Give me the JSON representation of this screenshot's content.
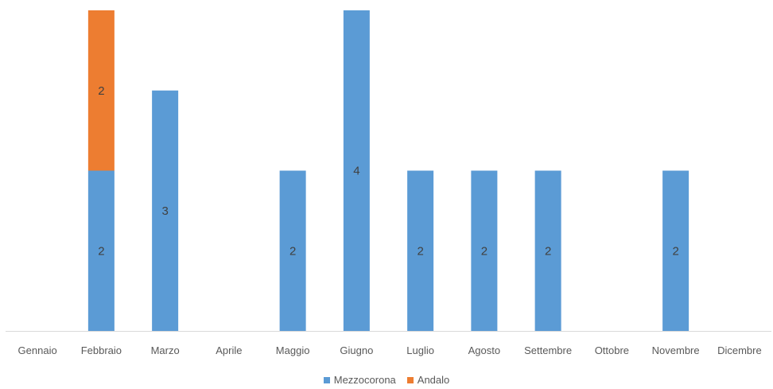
{
  "chart_data": {
    "type": "bar",
    "stacked": true,
    "categories": [
      "Gennaio",
      "Febbraio",
      "Marzo",
      "Aprile",
      "Maggio",
      "Giugno",
      "Luglio",
      "Agosto",
      "Settembre",
      "Ottobre",
      "Novembre",
      "Dicembre"
    ],
    "series": [
      {
        "name": "Mezzocorona",
        "color": "#5B9BD5",
        "values": [
          0,
          2,
          3,
          0,
          2,
          4,
          2,
          2,
          2,
          0,
          2,
          0
        ]
      },
      {
        "name": "Andalo",
        "color": "#ED7D31",
        "values": [
          0,
          2,
          0,
          0,
          0,
          0,
          0,
          0,
          0,
          0,
          0,
          0
        ]
      }
    ],
    "ylim": [
      0,
      4
    ],
    "grid": false,
    "legend_position": "bottom"
  }
}
